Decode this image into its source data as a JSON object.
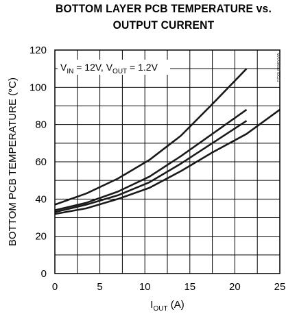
{
  "chart_data": {
    "type": "line",
    "title_line1": "BOTTOM LAYER PCB TEMPERATURE vs.",
    "title_line2": "OUTPUT CURRENT",
    "xlabel_main": "I",
    "xlabel_sub": "OUT",
    "xlabel_unit": " (A)",
    "ylabel": "BOTTOM PCB TEMPERATURE (°C)",
    "xlim": [
      0,
      25
    ],
    "ylim": [
      0,
      120
    ],
    "x_ticks": [
      0,
      5,
      10,
      15,
      20,
      25
    ],
    "y_ticks": [
      0,
      20,
      40,
      60,
      80,
      100,
      120
    ],
    "grid": true,
    "annotation": {
      "v_in_main": "V",
      "v_in_sub": "IN",
      "v_in_val": " = 12V, ",
      "v_out_main": "V",
      "v_out_sub": "OUT",
      "v_out_val": " = 1.2V"
    },
    "watermark": "MAX8655 toc21",
    "series": [
      {
        "x": [
          0,
          3.5,
          7,
          10.5,
          14,
          17.5,
          21.3
        ],
        "y": [
          37,
          43,
          51,
          61,
          74,
          91,
          110
        ]
      },
      {
        "x": [
          0,
          3.5,
          7,
          10.5,
          14,
          17.5,
          21.3
        ],
        "y": [
          34,
          38,
          44,
          52,
          63,
          75,
          88
        ]
      },
      {
        "x": [
          0,
          3.5,
          7,
          10.5,
          14,
          17.5,
          21.3
        ],
        "y": [
          33,
          37,
          42,
          49,
          59,
          70,
          82
        ]
      },
      {
        "x": [
          0,
          3.5,
          7,
          10.5,
          14,
          17.5,
          21.3,
          25
        ],
        "y": [
          32,
          35,
          40,
          46,
          55,
          65,
          75,
          88
        ]
      }
    ]
  }
}
